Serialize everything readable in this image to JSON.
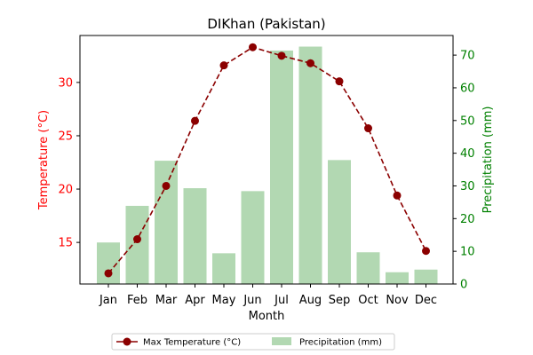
{
  "chart_data": {
    "type": "bar+line",
    "title": "DIKhan (Pakistan)",
    "xlabel": "Month",
    "categories": [
      "Jan",
      "Feb",
      "Mar",
      "Apr",
      "May",
      "Jun",
      "Jul",
      "Aug",
      "Sep",
      "Oct",
      "Nov",
      "Dec"
    ],
    "left_axis": {
      "label": "Temperature (°C)",
      "color": "#ff0000",
      "ylim": [
        11.1,
        34.4
      ],
      "ticks": [
        15,
        20,
        25,
        30
      ]
    },
    "right_axis": {
      "label": "Precipitation (mm)",
      "color": "#008000",
      "ylim": [
        0,
        76
      ],
      "ticks": [
        0,
        10,
        20,
        30,
        40,
        50,
        60,
        70
      ]
    },
    "series": [
      {
        "name": "Max Temperature (°C)",
        "type": "line",
        "axis": "left",
        "color": "#8b0000",
        "linestyle": "dashed",
        "marker": "circle",
        "values": [
          12.1,
          15.3,
          20.3,
          26.4,
          31.6,
          33.3,
          32.5,
          31.8,
          30.1,
          25.7,
          19.4,
          14.2
        ]
      },
      {
        "name": "Precipitation (mm)",
        "type": "bar",
        "axis": "right",
        "color": "#b2d8b2",
        "values": [
          12.7,
          23.9,
          37.7,
          29.3,
          9.4,
          28.4,
          71.4,
          72.6,
          37.9,
          9.7,
          3.6,
          4.4
        ]
      }
    ],
    "legend": {
      "placement": "bottom-center",
      "columns": 2
    },
    "grid": false
  }
}
